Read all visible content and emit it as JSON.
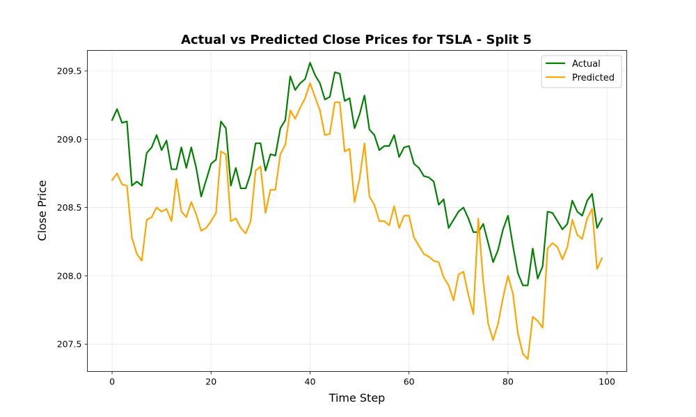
{
  "chart_data": {
    "type": "line",
    "title": "Actual vs Predicted Close Prices for TSLA - Split 5",
    "xlabel": "Time Step",
    "ylabel": "Close Price",
    "xlim": [
      -5,
      104
    ],
    "ylim": [
      207.3,
      209.65
    ],
    "xticks": [
      0,
      20,
      40,
      60,
      80,
      100
    ],
    "yticks": [
      207.5,
      208.0,
      208.5,
      209.0,
      209.5
    ],
    "ytick_labels": [
      "207.5",
      "208.0",
      "208.5",
      "209.0",
      "209.5"
    ],
    "grid": true,
    "legend": "top-right",
    "series": [
      {
        "name": "Actual",
        "color": "#008000",
        "values": [
          209.14,
          209.22,
          209.12,
          209.13,
          208.66,
          208.69,
          208.66,
          208.9,
          208.94,
          209.03,
          208.92,
          208.99,
          208.78,
          208.78,
          208.94,
          208.79,
          208.94,
          208.79,
          208.58,
          208.7,
          208.82,
          208.85,
          209.13,
          209.08,
          208.66,
          208.79,
          208.64,
          208.64,
          208.75,
          208.97,
          208.97,
          208.77,
          208.89,
          208.88,
          209.08,
          209.14,
          209.46,
          209.36,
          209.41,
          209.44,
          209.56,
          209.47,
          209.41,
          209.29,
          209.31,
          209.49,
          209.48,
          209.28,
          209.3,
          209.08,
          209.18,
          209.32,
          209.07,
          209.03,
          208.92,
          208.95,
          208.95,
          209.03,
          208.87,
          208.94,
          208.95,
          208.82,
          208.79,
          208.73,
          208.72,
          208.69,
          208.52,
          208.56,
          208.35,
          208.41,
          208.47,
          208.5,
          208.42,
          208.32,
          208.32,
          208.38,
          208.24,
          208.1,
          208.19,
          208.34,
          208.44,
          208.22,
          208.02,
          207.93,
          207.93,
          208.2,
          207.98,
          208.07,
          208.47,
          208.46,
          208.4,
          208.34,
          208.38,
          208.55,
          208.47,
          208.44,
          208.55,
          208.6,
          208.35,
          208.42
        ]
      },
      {
        "name": "Predicted",
        "color": "#ffa500",
        "values": [
          208.7,
          208.75,
          208.67,
          208.66,
          208.28,
          208.16,
          208.11,
          208.41,
          208.43,
          208.5,
          208.47,
          208.49,
          208.4,
          208.71,
          208.47,
          208.43,
          208.54,
          208.45,
          208.33,
          208.35,
          208.4,
          208.46,
          208.91,
          208.89,
          208.4,
          208.42,
          208.35,
          208.31,
          208.4,
          208.77,
          208.8,
          208.46,
          208.63,
          208.63,
          208.89,
          208.96,
          209.21,
          209.15,
          209.23,
          209.3,
          209.41,
          209.31,
          209.21,
          209.03,
          209.04,
          209.27,
          209.27,
          208.91,
          208.93,
          208.54,
          208.71,
          208.97,
          208.58,
          208.52,
          208.4,
          208.4,
          208.37,
          208.51,
          208.35,
          208.44,
          208.44,
          208.28,
          208.22,
          208.16,
          208.14,
          208.11,
          208.1,
          207.99,
          207.93,
          207.82,
          208.01,
          208.03,
          207.86,
          207.72,
          208.42,
          207.96,
          207.65,
          207.53,
          207.65,
          207.84,
          208.0,
          207.87,
          207.58,
          207.43,
          207.39,
          207.7,
          207.67,
          207.62,
          208.2,
          208.24,
          208.21,
          208.12,
          208.21,
          208.41,
          208.3,
          208.27,
          208.42,
          208.49,
          208.05,
          208.13
        ]
      }
    ]
  }
}
